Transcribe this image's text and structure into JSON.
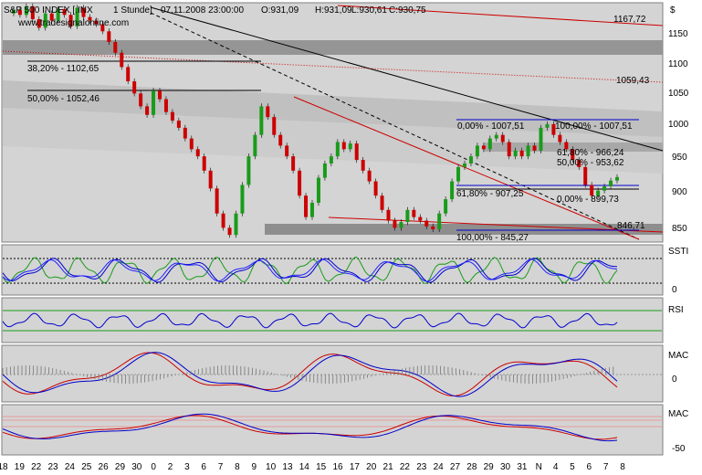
{
  "header": {
    "symbol": "S&P 500 INDEX [.INX",
    "interval": "1 Stunde]",
    "datetime": "07.11.2008 23:00:00",
    "open": "O:931,09",
    "high": "H:931,09",
    "low": "L:930,61",
    "close": "C:930,75",
    "currency": "$",
    "watermark": "www.tradesignalonline.com"
  },
  "colors": {
    "bull": "#1a9b1a",
    "bear": "#cc0000",
    "panel": "#d4d4d4",
    "band": "#8e8e8e",
    "fibBlue": "#0000cc",
    "resist": "#cc0000"
  },
  "main_axis": [
    "1150",
    "1100",
    "1050",
    "1000",
    "950",
    "900",
    "850"
  ],
  "x_axis": [
    "18",
    "19",
    "22",
    "23",
    "24",
    "25",
    "26",
    "29",
    "30",
    "0",
    "2",
    "3",
    "6",
    "7",
    "8",
    "9",
    "10",
    "13",
    "14",
    "15",
    "16",
    "17",
    "20",
    "21",
    "22",
    "23",
    "24",
    "27",
    "28",
    "29",
    "30",
    "31",
    "N",
    "4",
    "5",
    "6",
    "7",
    "8"
  ],
  "annotations": {
    "fib38_left": "38,20% - 1102,65",
    "fib50_left": "50,00% - 1052,46",
    "fib0_right": "0,00% - 1007,51",
    "fib100_right": "100,00% - 1007,51",
    "fib618_upper": "61,80% - 966,24",
    "fib50_right": "50,00% - 953,62",
    "fib618_lower": "61,80% - 907,25",
    "fib0_lower": "0,00% - 899,73",
    "fib100_lower": "100,00% - 845,27",
    "level_1167": "1167,72",
    "level_1059": "1059,43",
    "level_846": "846,71"
  },
  "panels": {
    "ssti": {
      "label": "SSTI",
      "ticks": [
        "0"
      ]
    },
    "rsi": {
      "label": "RSI",
      "ticks": []
    },
    "macd1": {
      "label": "MAC",
      "ticks": [
        "0"
      ]
    },
    "macd2": {
      "label": "MAC",
      "ticks": [
        "-50"
      ]
    }
  },
  "chart_data": {
    "type": "candlestick",
    "ylim": [
      840,
      1175
    ],
    "close_path": [
      1160,
      1165,
      1158,
      1170,
      1152,
      1140,
      1160,
      1150,
      1166,
      1158,
      1142,
      1168,
      1155,
      1150,
      1145,
      1135,
      1120,
      1105,
      1085,
      1065,
      1048,
      1030,
      1018,
      1052,
      1040,
      1022,
      1010,
      1000,
      985,
      970,
      960,
      940,
      915,
      880,
      860,
      850,
      880,
      920,
      960,
      990,
      1030,
      1015,
      990,
      975,
      960,
      940,
      905,
      875,
      895,
      930,
      950,
      960,
      980,
      970,
      978,
      955,
      940,
      925,
      905,
      885,
      870,
      860,
      868,
      885,
      875,
      870,
      862,
      858,
      880,
      900,
      925,
      945,
      950,
      960,
      975,
      970,
      985,
      990,
      980,
      960,
      968,
      960,
      975,
      968,
      1000,
      1005,
      990,
      980,
      970,
      955,
      945,
      920,
      905,
      912,
      918,
      926,
      931
    ],
    "key_levels": {
      "high": 1167.72,
      "resistance": 1059.43,
      "support": 846.71,
      "fib_top": 1007.51,
      "fib_low": 845.27
    }
  }
}
